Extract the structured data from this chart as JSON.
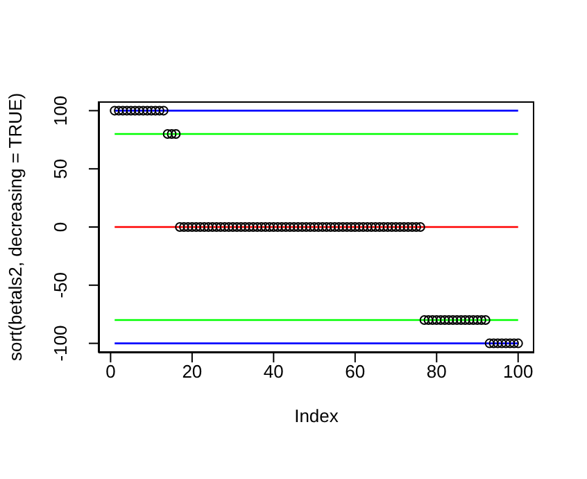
{
  "chart_data": {
    "type": "scatter",
    "xlabel": "Index",
    "ylabel": "sort(betals2, decreasing = TRUE)",
    "xlim": [
      -2.96,
      103.96
    ],
    "ylim": [
      -108,
      108
    ],
    "xticks": [
      0,
      20,
      40,
      60,
      80,
      100
    ],
    "yticks": [
      -100,
      -50,
      0,
      50,
      100
    ],
    "grid": false,
    "legend": false,
    "series": [
      {
        "marker": "circle",
        "color": "#000000",
        "x": [
          1,
          2,
          3,
          4,
          5,
          6,
          7,
          8,
          9,
          10,
          11,
          12,
          13,
          14,
          15,
          16,
          17,
          18,
          19,
          20,
          21,
          22,
          23,
          24,
          25,
          26,
          27,
          28,
          29,
          30,
          31,
          32,
          33,
          34,
          35,
          36,
          37,
          38,
          39,
          40,
          41,
          42,
          43,
          44,
          45,
          46,
          47,
          48,
          49,
          50,
          51,
          52,
          53,
          54,
          55,
          56,
          57,
          58,
          59,
          60,
          61,
          62,
          63,
          64,
          65,
          66,
          67,
          68,
          69,
          70,
          71,
          72,
          73,
          74,
          75,
          76,
          77,
          78,
          79,
          80,
          81,
          82,
          83,
          84,
          85,
          86,
          87,
          88,
          89,
          90,
          91,
          92,
          93,
          94,
          95,
          96,
          97,
          98,
          99,
          100
        ],
        "values": [
          100,
          100,
          100,
          100,
          100,
          100,
          100,
          100,
          100,
          100,
          100,
          100,
          100,
          80,
          80,
          80,
          0,
          0,
          0,
          0,
          0,
          0,
          0,
          0,
          0,
          0,
          0,
          0,
          0,
          0,
          0,
          0,
          0,
          0,
          0,
          0,
          0,
          0,
          0,
          0,
          0,
          0,
          0,
          0,
          0,
          0,
          0,
          0,
          0,
          0,
          0,
          0,
          0,
          0,
          0,
          0,
          0,
          0,
          0,
          0,
          0,
          0,
          0,
          0,
          0,
          0,
          0,
          0,
          0,
          0,
          0,
          0,
          0,
          0,
          0,
          0,
          -80,
          -80,
          -80,
          -80,
          -80,
          -80,
          -80,
          -80,
          -80,
          -80,
          -80,
          -80,
          -80,
          -80,
          -80,
          -80,
          -100,
          -100,
          -100,
          -100,
          -100,
          -100,
          -100,
          -100
        ]
      },
      {
        "type": "line",
        "color": "#0000ff",
        "x": [
          1,
          100
        ],
        "values": [
          100,
          100
        ]
      },
      {
        "type": "line",
        "color": "#00ff00",
        "x": [
          1,
          100
        ],
        "values": [
          80,
          80
        ]
      },
      {
        "type": "line",
        "color": "#ff0000",
        "x": [
          1,
          100
        ],
        "values": [
          0,
          0
        ]
      },
      {
        "type": "line",
        "color": "#00ff00",
        "x": [
          1,
          100
        ],
        "values": [
          -80,
          -80
        ]
      },
      {
        "type": "line",
        "color": "#0000ff",
        "x": [
          1,
          100
        ],
        "values": [
          -100,
          -100
        ]
      }
    ]
  }
}
